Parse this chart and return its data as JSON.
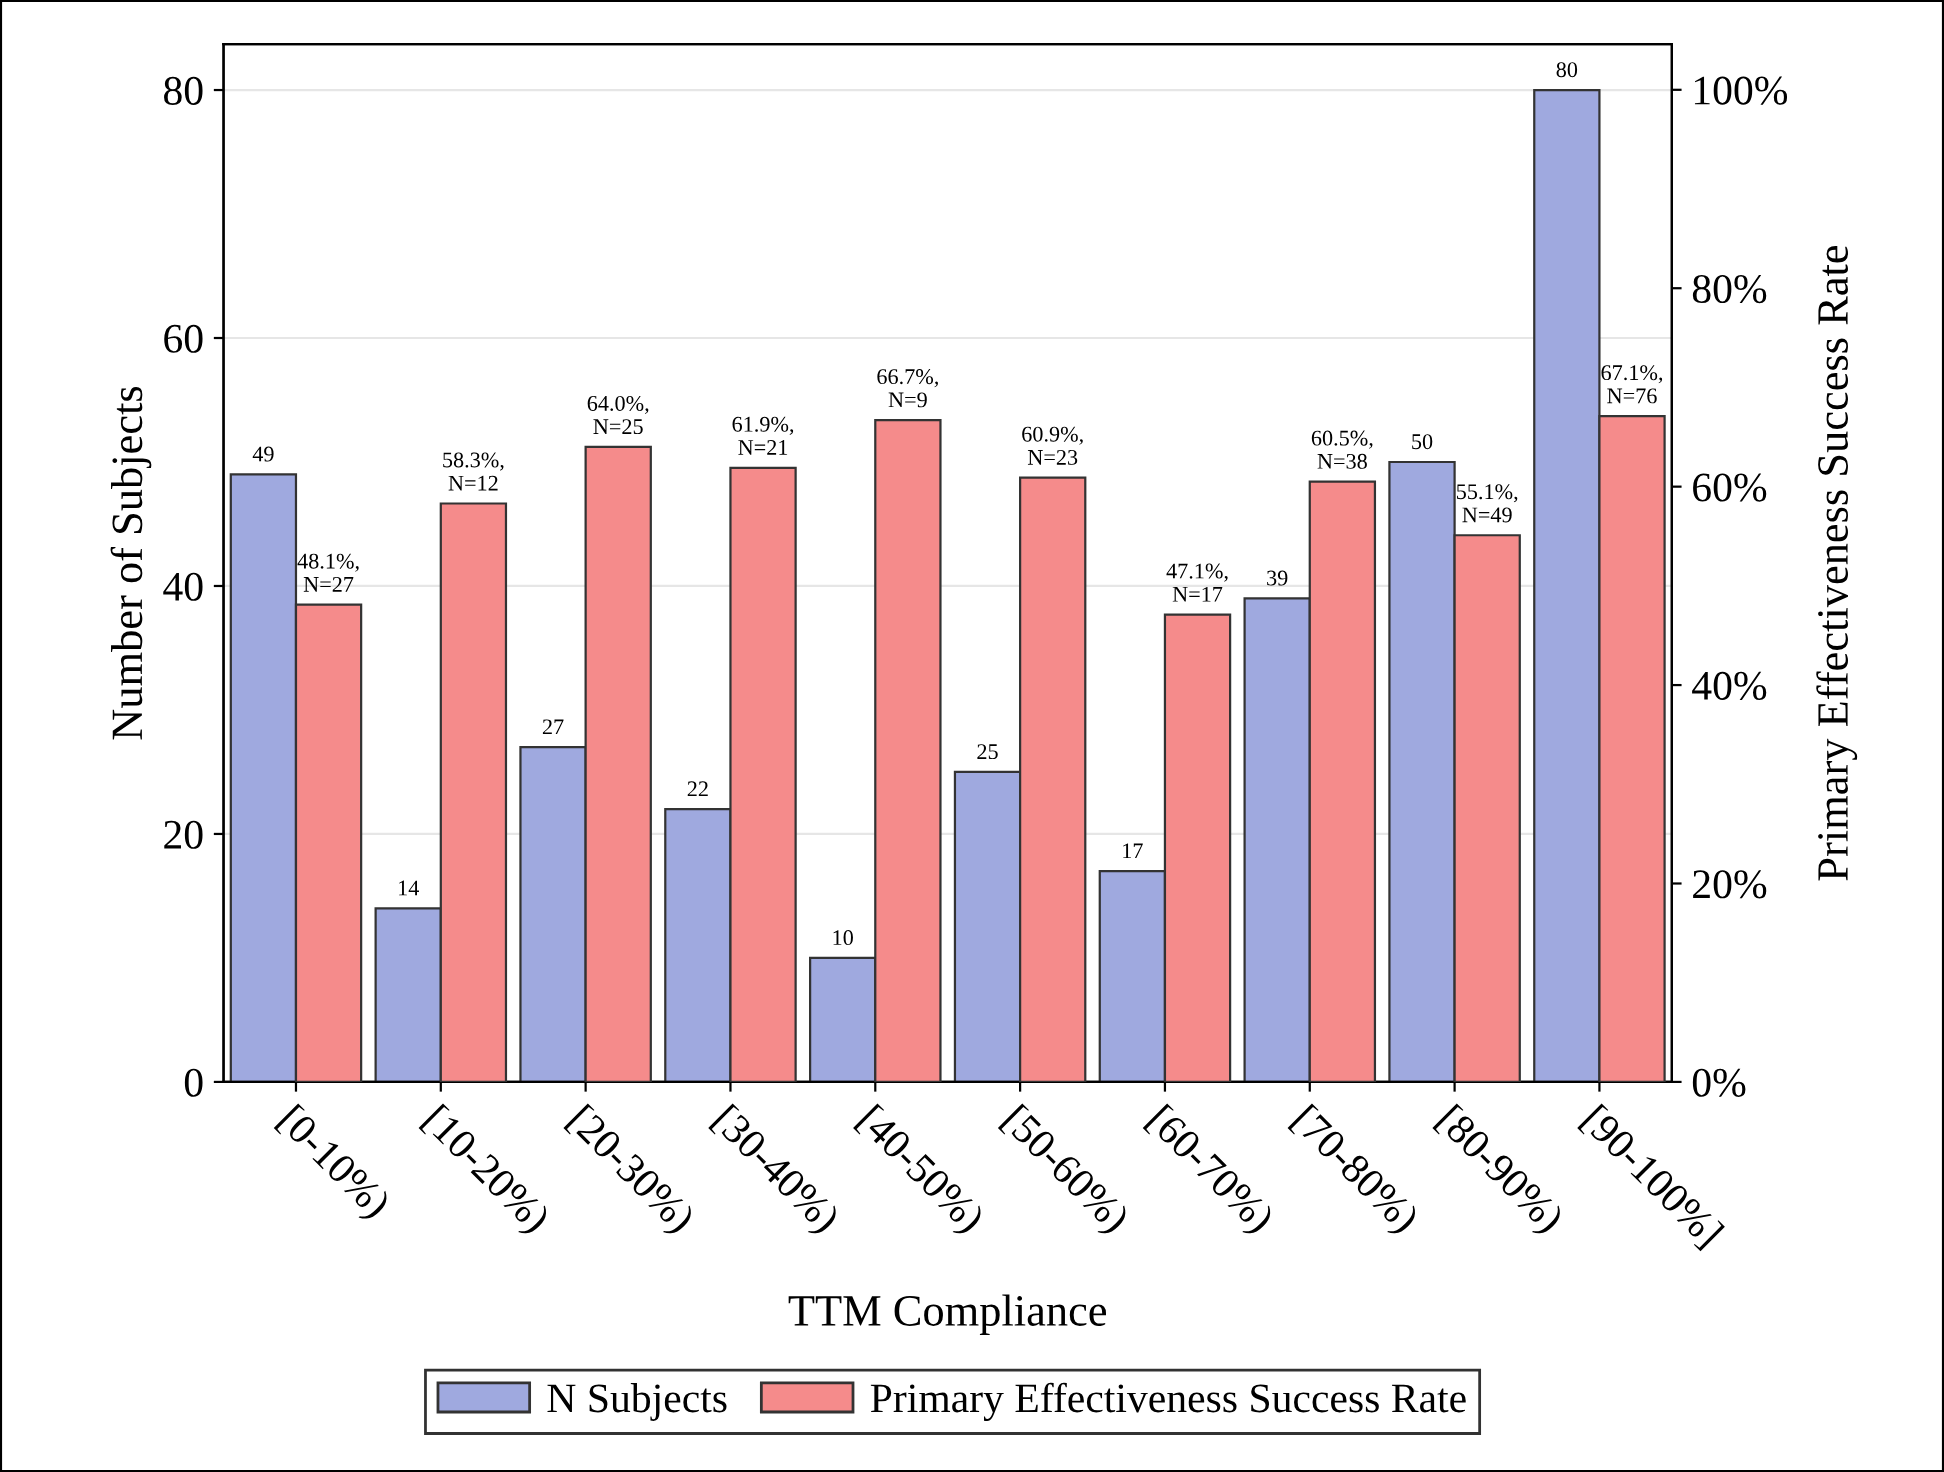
{
  "chart_data": {
    "type": "bar",
    "xlabel": "TTM Compliance",
    "ylabel": "Number of Subjects",
    "y2label": "Primary Effectiveness Success Rate",
    "categories": [
      "[0-10%)",
      "[10-20%)",
      "[20-30%)",
      "[30-40%)",
      "[40-50%)",
      "[50-60%)",
      "[60-70%)",
      "[70-80%)",
      "[80-90%)",
      "[90-100%]"
    ],
    "series": [
      {
        "name": "N Subjects",
        "color": "#9fa9df",
        "values": [
          49,
          14,
          27,
          22,
          10,
          25,
          17,
          39,
          50,
          80
        ],
        "value_labels": [
          "49",
          "14",
          "27",
          "22",
          "10",
          "25",
          "17",
          "39",
          "50",
          "80"
        ]
      },
      {
        "name": "Primary Effectiveness Success Rate",
        "color": "#f58b8b",
        "axis": "y2",
        "values": [
          48.1,
          58.3,
          64.0,
          61.9,
          66.7,
          60.9,
          47.1,
          60.5,
          55.1,
          67.1
        ],
        "value_labels": [
          "48.1%,\nN=27",
          "58.3%,\nN=12",
          "64.0%,\nN=25",
          "61.9%,\nN=21",
          "66.7%,\nN=9",
          "60.9%,\nN=23",
          "47.1%,\nN=17",
          "60.5%,\nN=38",
          "55.1%,\nN=49",
          "67.1%,\nN=76"
        ]
      }
    ],
    "ylim": [
      0,
      83.7
    ],
    "yticks": [
      0,
      20,
      40,
      60,
      80
    ],
    "y2lim": [
      0,
      104.6
    ],
    "y2ticks": [
      {
        "value": 0,
        "label": "0%"
      },
      {
        "value": 20,
        "label": "20%"
      },
      {
        "value": 40,
        "label": "40%"
      },
      {
        "value": 60,
        "label": "60%"
      },
      {
        "value": 80,
        "label": "80%"
      },
      {
        "value": 100,
        "label": "100%"
      }
    ],
    "grid": "y",
    "legend": "bottom"
  }
}
